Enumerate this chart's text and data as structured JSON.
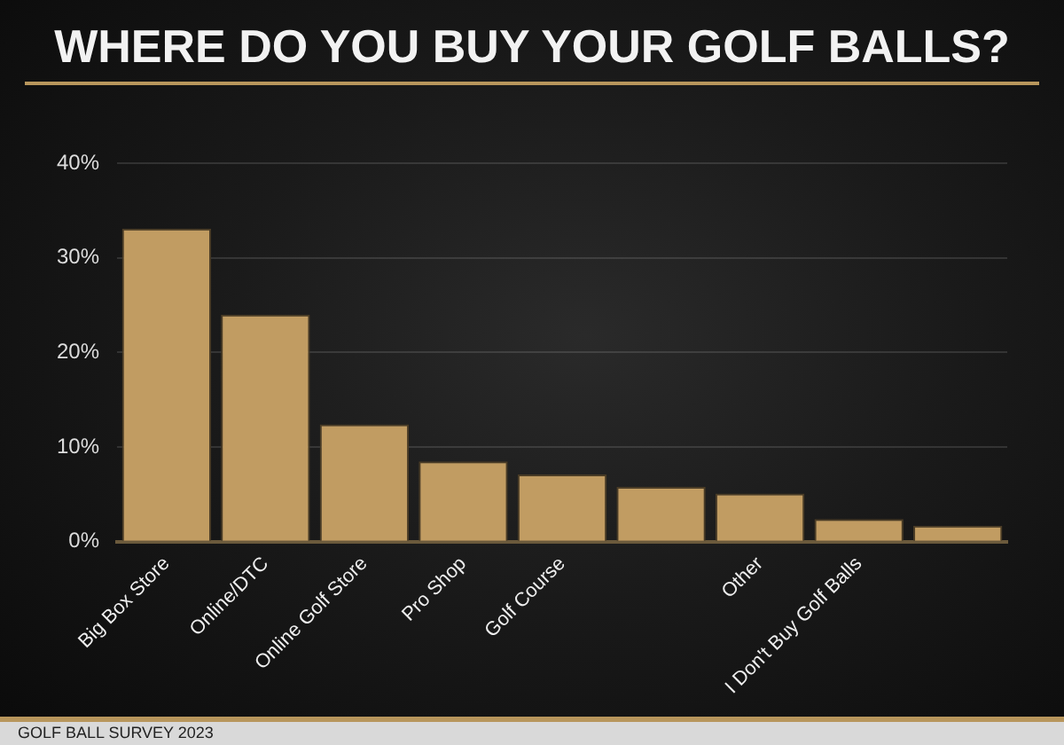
{
  "chart_data": {
    "type": "bar",
    "title": "WHERE DO YOU BUY YOUR GOLF BALLS?",
    "categories": [
      "Big Box Store",
      "Online/DTC",
      "Online Golf Store",
      "Pro Shop",
      "Golf Course",
      null,
      "Other",
      "I Don't Buy Golf Balls",
      null
    ],
    "values": [
      33.1,
      24.0,
      12.4,
      8.5,
      7.1,
      5.8,
      5.1,
      2.4,
      1.7
    ],
    "color": "#c19c62",
    "ylim": [
      0,
      40
    ],
    "yticks": [
      {
        "value": 0,
        "label": "0%"
      },
      {
        "value": 10,
        "label": "10%"
      },
      {
        "value": 20,
        "label": "20%"
      },
      {
        "value": 30,
        "label": "30%"
      },
      {
        "value": 40,
        "label": "40%"
      }
    ],
    "grid": "y",
    "annotations": [
      "GOLF BALL SURVEY 2023"
    ]
  }
}
